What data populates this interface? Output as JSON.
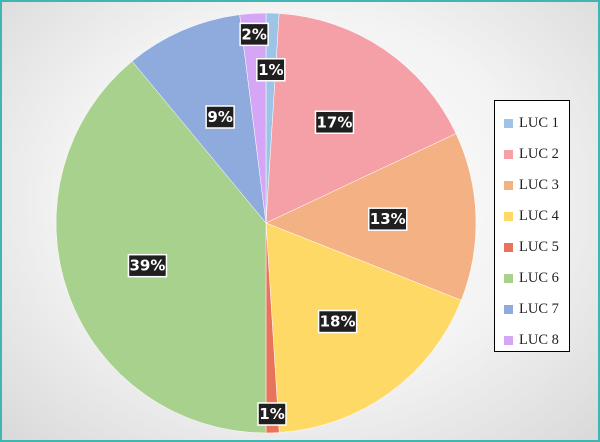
{
  "chart_data": {
    "type": "pie",
    "title": "",
    "categories": [
      "LUC 1",
      "LUC 2",
      "LUC 3",
      "LUC 4",
      "LUC 5",
      "LUC 6",
      "LUC 7",
      "LUC 8"
    ],
    "values": [
      1,
      17,
      13,
      18,
      1,
      39,
      9,
      2
    ],
    "data_labels": [
      "1%",
      "17%",
      "13%",
      "18%",
      "1%",
      "39%",
      "9%",
      "2%"
    ],
    "colors": [
      "#9dc3e6",
      "#f4a0a6",
      "#f4b183",
      "#ffd966",
      "#e8735a",
      "#a9d18e",
      "#8faadc",
      "#d5a6f6"
    ],
    "legend_position": "right",
    "start_angle": "top, clockwise"
  }
}
